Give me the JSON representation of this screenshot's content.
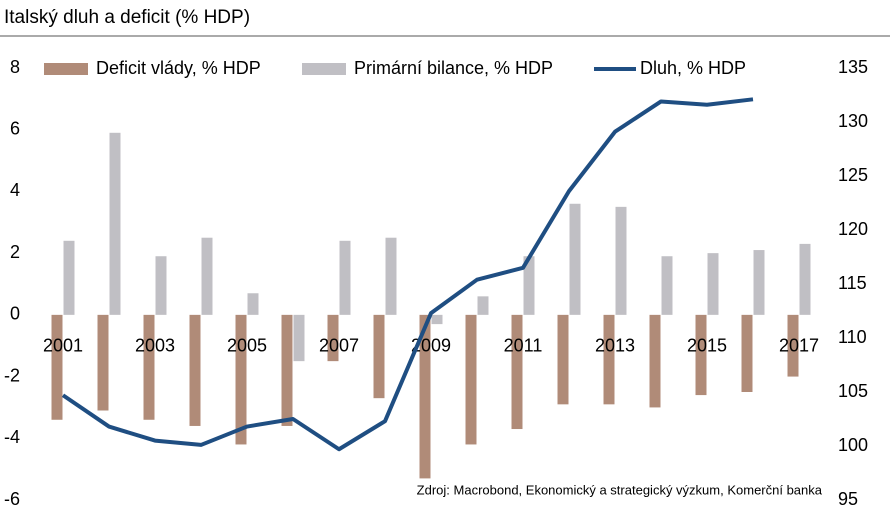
{
  "chart_data": {
    "type": "bar-line",
    "title": "Italský dluh a deficit (% HDP)",
    "source": "Zdroj: Macrobond, Ekonomický a strategický výzkum, Komerční banka",
    "categories": [
      "2001",
      null,
      "2003",
      null,
      "2005",
      null,
      "2007",
      null,
      "2009",
      null,
      "2011",
      null,
      "2013",
      null,
      "2015",
      null,
      "2017"
    ],
    "series": [
      {
        "name": "Deficit vlády, % HDP",
        "type": "bar",
        "color": "#b08b78",
        "values": [
          -3.4,
          -3.1,
          -3.4,
          -3.6,
          -4.2,
          -3.6,
          -1.5,
          -2.7,
          -5.3,
          -4.2,
          -3.7,
          -2.9,
          -2.9,
          -3.0,
          -2.6,
          -2.5,
          -2.0
        ]
      },
      {
        "name": "Primární bilance, % HDP",
        "type": "bar",
        "color": "#c0bfc4",
        "values": [
          2.4,
          5.9,
          1.9,
          2.5,
          0.7,
          -1.5,
          2.4,
          2.5,
          -0.3,
          0.6,
          1.9,
          3.6,
          3.5,
          1.9,
          2.0,
          2.1,
          2.3
        ]
      },
      {
        "name": "Dluh, % HDP",
        "type": "line",
        "axis": "y2",
        "color": "#1f4e82",
        "values": [
          104.7,
          101.8,
          100.5,
          100.1,
          101.8,
          102.5,
          99.7,
          102.3,
          112.3,
          115.4,
          116.5,
          123.6,
          129.1,
          131.9,
          131.6,
          132.1,
          null
        ]
      }
    ],
    "ylim": [
      -6,
      8
    ],
    "yticks": [
      -6,
      -4,
      -2,
      0,
      2,
      4,
      6,
      8
    ],
    "y2lim": [
      95,
      135
    ],
    "y2ticks": [
      95,
      100,
      105,
      110,
      115,
      120,
      125,
      130,
      135
    ],
    "legend": "top"
  }
}
